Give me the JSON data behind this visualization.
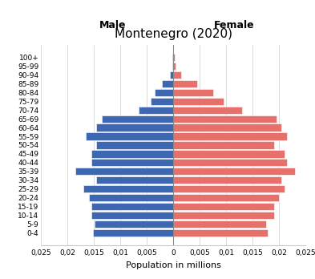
{
  "title": "Montenegro (2020)",
  "xlabel": "Population in millions",
  "male_label": "Male",
  "female_label": "Female",
  "age_groups": [
    "0-4",
    "5-9",
    "10-14",
    "15-19",
    "20-24",
    "25-29",
    "30-34",
    "35-39",
    "40-44",
    "45-49",
    "50-54",
    "55-59",
    "60-64",
    "65-69",
    "70-74",
    "75-79",
    "80-84",
    "85-89",
    "90-94",
    "95-99",
    "100+"
  ],
  "male_values": [
    0.0152,
    0.0148,
    0.0155,
    0.0155,
    0.016,
    0.017,
    0.0145,
    0.0185,
    0.0155,
    0.0155,
    0.0145,
    0.0165,
    0.0145,
    0.0135,
    0.0065,
    0.0042,
    0.0035,
    0.0022,
    0.0007,
    0.0002,
    0.0001
  ],
  "female_values": [
    0.0178,
    0.0175,
    0.019,
    0.019,
    0.02,
    0.021,
    0.0205,
    0.023,
    0.0215,
    0.021,
    0.019,
    0.0215,
    0.0205,
    0.0195,
    0.013,
    0.0095,
    0.0075,
    0.0045,
    0.0015,
    0.0004,
    0.0003
  ],
  "male_color": "#3d67b0",
  "female_color": "#e8706a",
  "xlim": 0.025,
  "background_color": "#ffffff",
  "grid_color": "#cccccc",
  "xticks": [
    -0.025,
    -0.02,
    -0.015,
    -0.01,
    -0.005,
    0,
    0.005,
    0.01,
    0.015,
    0.02,
    0.025
  ],
  "xtick_labels": [
    "0,025",
    "0,02",
    "0,015",
    "0,01",
    "0,005",
    "0",
    "0,005",
    "0,01",
    "0,015",
    "0,02",
    "0,025"
  ]
}
